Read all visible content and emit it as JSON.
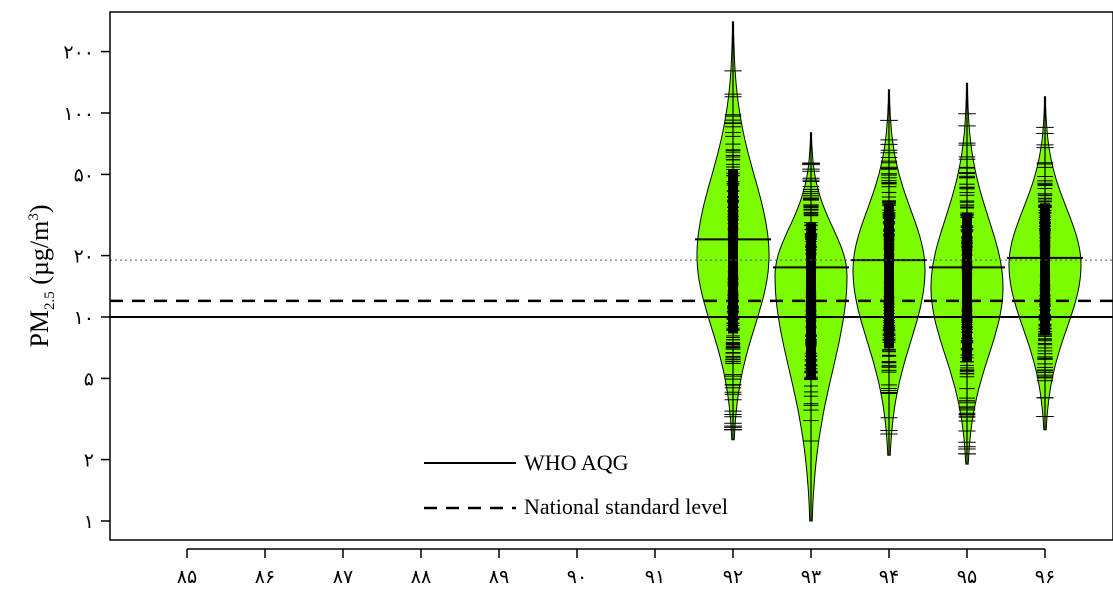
{
  "chart_data": {
    "type": "beanplot",
    "xlabel": "",
    "ylabel": {
      "main": "PM",
      "sub": "2.5",
      "unit_open": " (µg/m",
      "unit_sup": "3",
      "unit_close": ")"
    },
    "yscale": "log",
    "ylim": [
      0.85,
      290
    ],
    "y_ticks": [
      {
        "value": 1,
        "label": "۱"
      },
      {
        "value": 2,
        "label": "۲"
      },
      {
        "value": 5,
        "label": "۵"
      },
      {
        "value": 10,
        "label": "۱۰"
      },
      {
        "value": 20,
        "label": "۲۰"
      },
      {
        "value": 50,
        "label": "۵۰"
      },
      {
        "value": 100,
        "label": "۱۰۰"
      },
      {
        "value": 200,
        "label": "۲۰۰"
      }
    ],
    "categories": [
      "۸۵",
      "۸۶",
      "۸۷",
      "۸۸",
      "۸۹",
      "۹۰",
      "۹۱",
      "۹۲",
      "۹۳",
      "۹۴",
      "۹۵",
      "۹۶"
    ],
    "reference_lines": [
      {
        "name": "WHO AQG",
        "value": 10,
        "style": "solid"
      },
      {
        "name": "National standard level",
        "value": 12,
        "style": "dashed"
      },
      {
        "name": "",
        "value": 19,
        "style": "dotted"
      }
    ],
    "legend": {
      "position": "bottom-center",
      "entries": [
        {
          "label": "WHO AQG",
          "style": "solid"
        },
        {
          "label": "National standard level",
          "style": "dashed"
        }
      ]
    },
    "grid": false,
    "colors": {
      "bean_fill": "#7cfc00",
      "outline": "#000000"
    },
    "beans": [
      {
        "category": "۹۲",
        "mean": 24,
        "min": 2.5,
        "max": 280,
        "mode": 20
      },
      {
        "category": "۹۳",
        "mean": 17.5,
        "min": 1.0,
        "max": 80,
        "mode": 16
      },
      {
        "category": "۹۴",
        "mean": 19,
        "min": 2.1,
        "max": 130,
        "mode": 17
      },
      {
        "category": "۹۵",
        "mean": 17.5,
        "min": 1.9,
        "max": 140,
        "mode": 14
      },
      {
        "category": "۹۶",
        "mean": 19.5,
        "min": 2.8,
        "max": 120,
        "mode": 18
      }
    ]
  }
}
